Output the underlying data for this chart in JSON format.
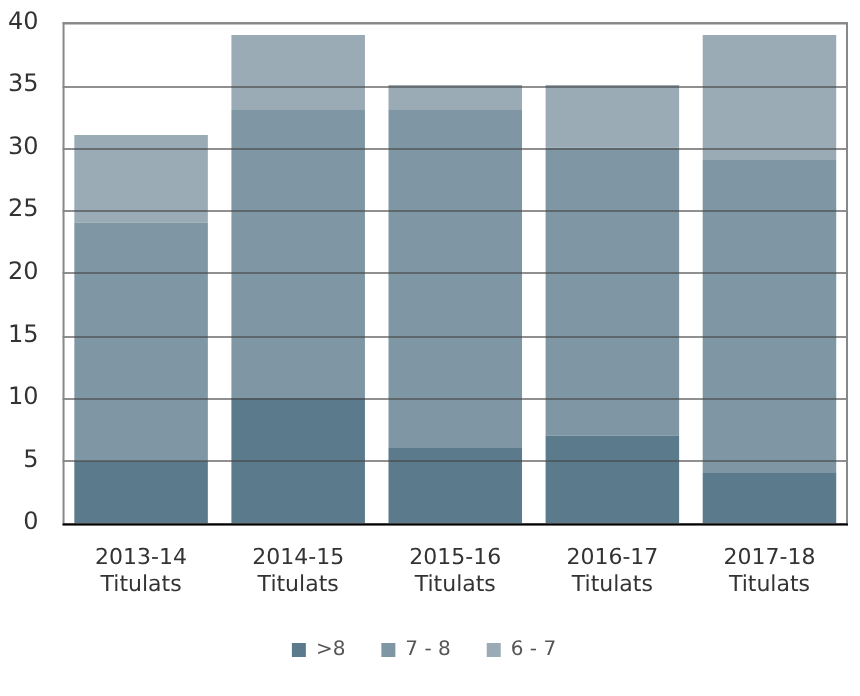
{
  "chart_data": {
    "type": "bar",
    "stacked": true,
    "categories": [
      "2013-14\nTitulats",
      "2014-15\nTitulats",
      "2015-16\nTitulats",
      "2016-17\nTitulats",
      "2017-18\nTitulats"
    ],
    "series": [
      {
        "name": ">8",
        "color": "#5b7a8c",
        "values": [
          5,
          10,
          6,
          7,
          4
        ]
      },
      {
        "name": "7 - 8",
        "color": "#7f96a4",
        "values": [
          19,
          23,
          27,
          23,
          25
        ]
      },
      {
        "name": "6 - 7",
        "color": "#9aabb5",
        "values": [
          7,
          6,
          2,
          5,
          10
        ]
      }
    ],
    "ylim": [
      0,
      40
    ],
    "yticks": [
      0,
      5,
      10,
      15,
      20,
      25,
      30,
      35,
      40
    ],
    "grid": "y",
    "legend": "bottom"
  }
}
